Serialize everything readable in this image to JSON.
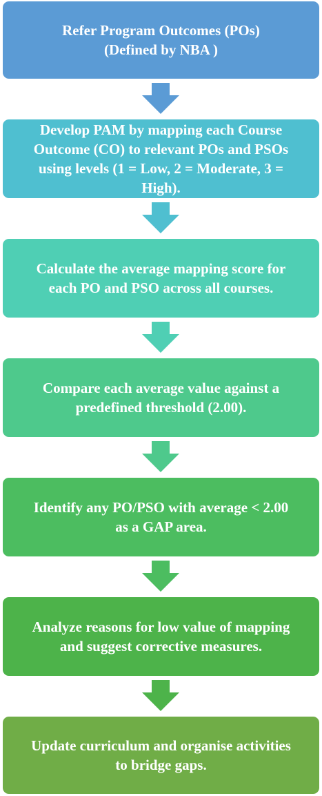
{
  "flowchart": {
    "steps": [
      {
        "lines": [
          "Refer Program Outcomes (POs)",
          "(Defined by NBA )"
        ],
        "color": "#5b9bd5"
      },
      {
        "lines": [
          "Develop PAM by mapping each Course",
          "Outcome (CO) to relevant POs and PSOs",
          "using levels (1 = Low, 2 = Moderate, 3 =",
          "High)."
        ],
        "color": "#4fbfd0"
      },
      {
        "lines": [
          "Calculate the average mapping score for",
          "each PO and PSO across all courses."
        ],
        "color": "#4fcfb4"
      },
      {
        "lines": [
          "Compare each average value against a",
          "predefined threshold (2.00)."
        ],
        "color": "#4ec98c"
      },
      {
        "lines": [
          "Identify any PO/PSO with average < 2.00",
          "as a GAP area."
        ],
        "color": "#4cbd60"
      },
      {
        "lines": [
          "Analyze reasons for low value of mapping",
          "and suggest corrective measures."
        ],
        "color": "#4db34a"
      },
      {
        "lines": [
          "Update curriculum and organise activities",
          "to bridge gaps."
        ],
        "color": "#70ad47"
      }
    ],
    "arrow_colors": [
      "#5b9bd5",
      "#4fbfd0",
      "#4fcfb4",
      "#4ec98c",
      "#4cbd60",
      "#4db34a"
    ]
  }
}
